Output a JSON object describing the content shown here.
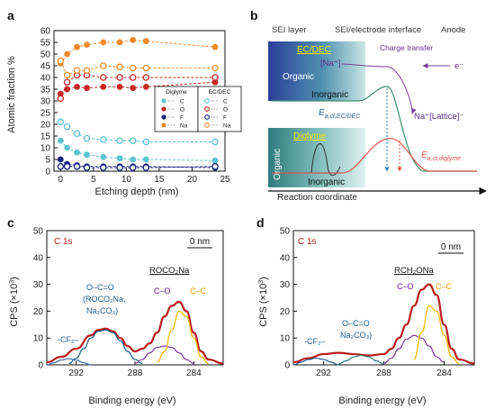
{
  "figure": {
    "panels": [
      "a",
      "b",
      "c",
      "d"
    ]
  },
  "chart_data": [
    {
      "id": "a",
      "type": "scatter",
      "xlabel": "Etching depth (nm)",
      "ylabel": "Atomic fraction %",
      "xlim": [
        -1,
        25
      ],
      "ylim": [
        0,
        60
      ],
      "xticks": [
        0,
        5,
        10,
        15,
        20,
        25
      ],
      "yticks": [
        0,
        5,
        10,
        15,
        20,
        25,
        30,
        35,
        40,
        45,
        50,
        55,
        60
      ],
      "grid": false,
      "legend_placement": "center-right",
      "legend_groups": [
        {
          "title": "Diglyme",
          "marker": "filled",
          "entries": [
            "C",
            "O",
            "F",
            "Na"
          ]
        },
        {
          "title": "EC/DEC",
          "marker": "open",
          "entries": [
            "C",
            "O",
            "F",
            "Na"
          ]
        }
      ],
      "series": [
        {
          "group": "Diglyme",
          "element": "C",
          "color": "#5bc4d0",
          "marker": "filled",
          "x": [
            0,
            1,
            2.5,
            4,
            6.5,
            9,
            11,
            13,
            23.5
          ],
          "y": [
            13,
            10,
            8,
            7,
            6,
            5.5,
            5,
            5,
            4.5
          ]
        },
        {
          "group": "Diglyme",
          "element": "O",
          "color": "#c62828",
          "marker": "filled",
          "x": [
            0,
            1,
            2.5,
            4,
            6.5,
            9,
            11,
            13,
            23.5
          ],
          "y": [
            33,
            35,
            36,
            35.5,
            36,
            36,
            35.5,
            36,
            38
          ]
        },
        {
          "group": "Diglyme",
          "element": "F",
          "color": "#1a237e",
          "marker": "filled",
          "x": [
            0,
            1,
            2.5,
            4,
            6.5,
            9,
            11,
            13,
            23.5
          ],
          "y": [
            5,
            3,
            2.5,
            2,
            2,
            2,
            2,
            2,
            1.5
          ]
        },
        {
          "group": "Diglyme",
          "element": "Na",
          "color": "#ef8a2e",
          "marker": "filled",
          "x": [
            0,
            1,
            2.5,
            4,
            6.5,
            9,
            11,
            13,
            23.5
          ],
          "y": [
            46,
            50,
            53,
            54,
            55,
            55,
            56,
            55.5,
            53
          ]
        },
        {
          "group": "EC/DEC",
          "element": "C",
          "color": "#5bc4d0",
          "marker": "open",
          "x": [
            0,
            1,
            2.5,
            4,
            6.5,
            9,
            11,
            13,
            23.5
          ],
          "y": [
            21,
            19,
            16,
            14,
            13.5,
            13,
            13,
            12.5,
            12.5
          ]
        },
        {
          "group": "EC/DEC",
          "element": "O",
          "color": "#c62828",
          "marker": "open",
          "x": [
            0,
            1,
            2.5,
            4,
            6.5,
            9,
            11,
            13,
            23.5
          ],
          "y": [
            31,
            38,
            41,
            41,
            40,
            40,
            40,
            40,
            40
          ]
        },
        {
          "group": "EC/DEC",
          "element": "F",
          "color": "#1a237e",
          "marker": "open",
          "x": [
            0,
            1,
            2.5,
            4,
            6.5,
            9,
            11,
            13,
            23.5
          ],
          "y": [
            2,
            2,
            2,
            1.5,
            1.5,
            1.5,
            1.5,
            1.5,
            2
          ]
        },
        {
          "group": "EC/DEC",
          "element": "Na",
          "color": "#ef8a2e",
          "marker": "open",
          "x": [
            0,
            1,
            2.5,
            4,
            6.5,
            9,
            11,
            13,
            23.5
          ],
          "y": [
            47,
            41,
            43,
            43,
            45,
            44.5,
            44,
            44,
            44
          ]
        }
      ]
    },
    {
      "id": "b",
      "type": "diagram",
      "regions": [
        "SEI layer",
        "SEI/electrode interface",
        "Anode"
      ],
      "upper_box": {
        "title": "EC/DEC",
        "labels": [
          "Organic",
          "Inorganic"
        ]
      },
      "lower_box": {
        "title": "Diglyme",
        "labels": [
          "Organic",
          "Inorganic"
        ]
      },
      "species": {
        "left": "[Na⁺]",
        "right": "Na⁺[Lattice]⁻",
        "electron": "e⁻"
      },
      "process": "Charge transfer",
      "barriers": [
        {
          "label_main": "E",
          "label_sub": "a,ct,EC/DEC",
          "relative_height": 1.0,
          "color": "#3e8e6a"
        },
        {
          "label_main": "E",
          "label_sub": "a,ct,diglyme",
          "relative_height": 0.55,
          "color": "#d9534f"
        }
      ],
      "xlabel": "Reaction coordinate"
    },
    {
      "id": "c",
      "type": "line",
      "title": "C 1s",
      "depth_label": "0 nm",
      "xlabel": "Binding energy (eV)",
      "ylabel_parts": [
        "CPS (×10",
        "3",
        ")"
      ],
      "xlim": [
        294,
        282
      ],
      "xaxis_reversed": true,
      "ylim": [
        0,
        50
      ],
      "xticks": [
        292,
        288,
        284
      ],
      "yticks": [
        0,
        10,
        20,
        30,
        40,
        50
      ],
      "annotations": [
        {
          "text": "-CF₂–",
          "color": "#1f5f8b"
        },
        {
          "text": "O–C=O",
          "color": "#1f5f8b"
        },
        {
          "text": "(ROCO₂Na,",
          "color": "#1f5f8b"
        },
        {
          "text": "Na₂CO₃)",
          "color": "#1f5f8b"
        },
        {
          "text": "ROCO₂Na",
          "color": "#111111"
        },
        {
          "text": "C–O",
          "color": "#6a1b9a"
        },
        {
          "text": "C–C",
          "color": "#e0a000"
        }
      ],
      "series": [
        {
          "label": "data",
          "color": "#b71c1c",
          "x": [
            294,
            293,
            292,
            291,
            290.5,
            290,
            289.5,
            289,
            288.5,
            288,
            287.5,
            287,
            286.5,
            286,
            285.5,
            285,
            284.5,
            284,
            283.5,
            283,
            282
          ],
          "y": [
            1,
            3,
            6,
            11,
            13,
            13.5,
            12.5,
            10,
            7,
            5,
            6,
            8,
            12,
            18,
            22,
            23.5,
            20,
            12,
            5,
            2,
            0.5
          ]
        },
        {
          "label": "O–C=O",
          "color": "#1f5f8b",
          "x": [
            292.5,
            292,
            291.5,
            291,
            290.5,
            290,
            289.5,
            289,
            288.5,
            288,
            287.5
          ],
          "y": [
            0.5,
            2.5,
            6,
            10,
            12.5,
            13,
            12,
            9,
            5,
            2,
            0.5
          ]
        },
        {
          "label": "-CF₂–",
          "color": "#3a6ea5",
          "x": [
            294,
            293.5,
            293,
            292.5,
            292,
            291.5,
            291
          ],
          "y": [
            0,
            0.8,
            1.8,
            2.3,
            1.8,
            0.8,
            0
          ]
        },
        {
          "label": "C–O",
          "color": "#7b3fa0",
          "x": [
            288,
            287.5,
            287,
            286.5,
            286,
            285.5,
            285,
            284.5,
            284
          ],
          "y": [
            0.5,
            2,
            4.5,
            6.5,
            7,
            6.5,
            4.5,
            2,
            0.5
          ]
        },
        {
          "label": "C–C",
          "color": "#f0b400",
          "x": [
            286.5,
            286,
            285.5,
            285,
            284.5,
            284,
            283.5,
            283
          ],
          "y": [
            1,
            5,
            13,
            20,
            18,
            10,
            3,
            0.5
          ]
        }
      ]
    },
    {
      "id": "d",
      "type": "line",
      "title": "C 1s",
      "depth_label": "0 nm",
      "xlabel": "Binding energy (eV)",
      "ylabel_parts": [
        "CPS (×10",
        "3",
        ")"
      ],
      "xlim": [
        294,
        282
      ],
      "xaxis_reversed": true,
      "ylim": [
        0,
        50
      ],
      "xticks": [
        292,
        288,
        284
      ],
      "yticks": [
        0,
        10,
        20,
        30,
        40,
        50
      ],
      "annotations": [
        {
          "text": "-CF₂–",
          "color": "#1f5f8b"
        },
        {
          "text": "O–C=O",
          "color": "#1f5f8b"
        },
        {
          "text": "Na₂CO₃)",
          "color": "#1f5f8b"
        },
        {
          "text": "RCH₂ONa",
          "color": "#111111"
        },
        {
          "text": "C–O",
          "color": "#6a1b9a"
        },
        {
          "text": "C–C",
          "color": "#e0a000"
        }
      ],
      "series": [
        {
          "label": "data",
          "color": "#b71c1c",
          "x": [
            294,
            293,
            292,
            291,
            290,
            289,
            288,
            287.5,
            287,
            286.5,
            286,
            285.5,
            285,
            284.5,
            284,
            283.5,
            283,
            282
          ],
          "y": [
            1,
            2.5,
            4,
            4.5,
            4,
            3.5,
            4,
            6,
            10,
            15,
            22,
            28,
            30,
            26,
            15,
            6,
            2,
            0.5
          ]
        },
        {
          "label": "-CF₂–",
          "color": "#1f5f8b",
          "x": [
            294,
            293.5,
            293,
            292.5,
            292,
            291.5,
            291
          ],
          "y": [
            0,
            1,
            2,
            2.5,
            2,
            1,
            0
          ]
        },
        {
          "label": "O–C=O",
          "color": "#2e7d7d",
          "x": [
            291,
            290.5,
            290,
            289.5,
            289,
            288.5,
            288
          ],
          "y": [
            0.3,
            1.5,
            3,
            3.5,
            3,
            1.5,
            0.3
          ]
        },
        {
          "label": "C–O",
          "color": "#7b3fa0",
          "x": [
            288,
            287.5,
            287,
            286.5,
            286,
            285.5,
            285,
            284.5,
            284
          ],
          "y": [
            0.5,
            2.5,
            6,
            9.5,
            11,
            10,
            7,
            3,
            1
          ]
        },
        {
          "label": "C–C",
          "color": "#f0b400",
          "x": [
            286,
            285.5,
            285,
            284.5,
            284,
            283.5,
            283
          ],
          "y": [
            2,
            12,
            22,
            20,
            11,
            3,
            0.5
          ]
        }
      ]
    }
  ]
}
